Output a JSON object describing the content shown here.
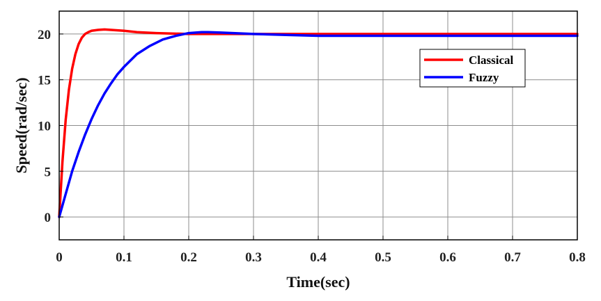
{
  "chart_data": {
    "type": "line",
    "title": "",
    "xlabel": "Time(sec)",
    "ylabel": "Speed(rad/sec)",
    "xlim": [
      0,
      0.8
    ],
    "ylim": [
      -2.5,
      22.5
    ],
    "xticks": [
      0,
      0.1,
      0.2,
      0.3,
      0.4,
      0.5,
      0.6,
      0.7,
      0.8
    ],
    "xtick_labels": [
      "0",
      "0.1",
      "0.2",
      "0.3",
      "0.4",
      "0.5",
      "0.6",
      "0.7",
      "0.8"
    ],
    "yticks": [
      0,
      5,
      10,
      15,
      20
    ],
    "ytick_labels": [
      "0",
      "5",
      "10",
      "15",
      "20"
    ],
    "grid": true,
    "legend_position": "top-right",
    "series": [
      {
        "name": "Classical",
        "color": "#ff0000",
        "x": [
          0,
          0.005,
          0.01,
          0.015,
          0.02,
          0.025,
          0.03,
          0.035,
          0.04,
          0.045,
          0.05,
          0.06,
          0.07,
          0.08,
          0.1,
          0.12,
          0.15,
          0.2,
          0.3,
          0.4,
          0.5,
          0.6,
          0.7,
          0.8
        ],
        "y": [
          0,
          6,
          10.6,
          13.9,
          16.2,
          17.8,
          18.9,
          19.6,
          20.0,
          20.2,
          20.35,
          20.45,
          20.5,
          20.45,
          20.35,
          20.2,
          20.1,
          20.0,
          20.0,
          20.0,
          20.0,
          20.0,
          20.0,
          20.0
        ]
      },
      {
        "name": "Fuzzy",
        "color": "#0000ff",
        "x": [
          0,
          0.01,
          0.02,
          0.03,
          0.04,
          0.05,
          0.06,
          0.07,
          0.08,
          0.09,
          0.1,
          0.12,
          0.14,
          0.16,
          0.18,
          0.2,
          0.22,
          0.23,
          0.25,
          0.3,
          0.35,
          0.4,
          0.5,
          0.6,
          0.7,
          0.8
        ],
        "y": [
          0,
          2.5,
          5.0,
          7.1,
          9.0,
          10.7,
          12.2,
          13.5,
          14.6,
          15.6,
          16.4,
          17.8,
          18.7,
          19.4,
          19.8,
          20.1,
          20.2,
          20.2,
          20.15,
          20.0,
          19.9,
          19.8,
          19.8,
          19.8,
          19.8,
          19.8
        ]
      }
    ]
  }
}
